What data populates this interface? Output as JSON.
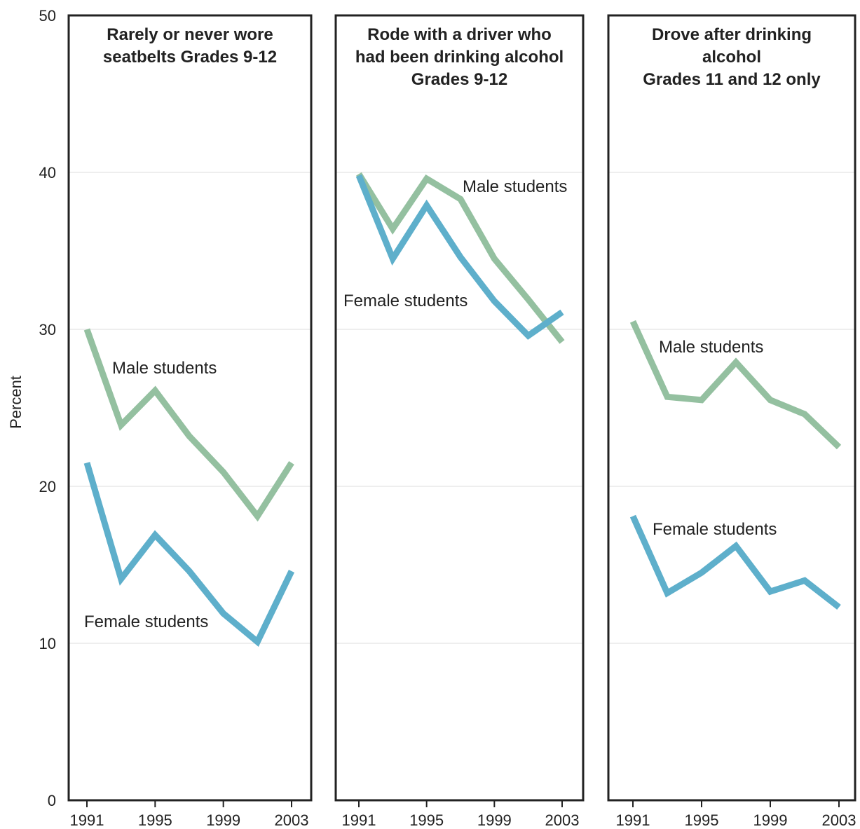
{
  "chart_data": {
    "type": "line",
    "ylabel": "Percent",
    "ylim": [
      0,
      50
    ],
    "y_ticks": [
      "0",
      "10",
      "20",
      "30",
      "40",
      "50"
    ],
    "x_ticks": [
      "1991",
      "1995",
      "1999",
      "2003"
    ],
    "x": [
      1991,
      1993,
      1995,
      1997,
      1999,
      2001,
      2003
    ],
    "grid": "horizontal",
    "colors": {
      "male": "#94c0a0",
      "female": "#5eafcb"
    },
    "panels": [
      {
        "title_lines": [
          "Rarely or never wore",
          "seatbelts Grades 9-12"
        ],
        "series": [
          {
            "name": "Male students",
            "key": "male",
            "values": [
              30.0,
              23.9,
              26.1,
              23.2,
              20.9,
              18.1,
              21.5
            ]
          },
          {
            "name": "Female students",
            "key": "female",
            "values": [
              21.5,
              14.1,
              16.9,
              14.6,
              11.9,
              10.1,
              14.6
            ]
          }
        ]
      },
      {
        "title_lines": [
          "Rode with a driver who",
          "had been drinking alcohol",
          "Grades 9-12"
        ],
        "series": [
          {
            "name": "Male students",
            "key": "male",
            "values": [
              39.9,
              36.4,
              39.6,
              38.3,
              34.5,
              31.9,
              29.2
            ]
          },
          {
            "name": "Female students",
            "key": "female",
            "values": [
              39.8,
              34.5,
              37.9,
              34.6,
              31.8,
              29.6,
              31.1
            ]
          }
        ]
      },
      {
        "title_lines": [
          "Drove after drinking",
          "alcohol",
          "Grades 11 and 12 only"
        ],
        "series": [
          {
            "name": "Male students",
            "key": "male",
            "values": [
              30.5,
              25.7,
              25.5,
              27.9,
              25.5,
              24.6,
              22.5
            ]
          },
          {
            "name": "Female students",
            "key": "female",
            "values": [
              18.1,
              13.2,
              14.5,
              16.2,
              13.3,
              14.0,
              12.3
            ]
          }
        ]
      }
    ]
  }
}
